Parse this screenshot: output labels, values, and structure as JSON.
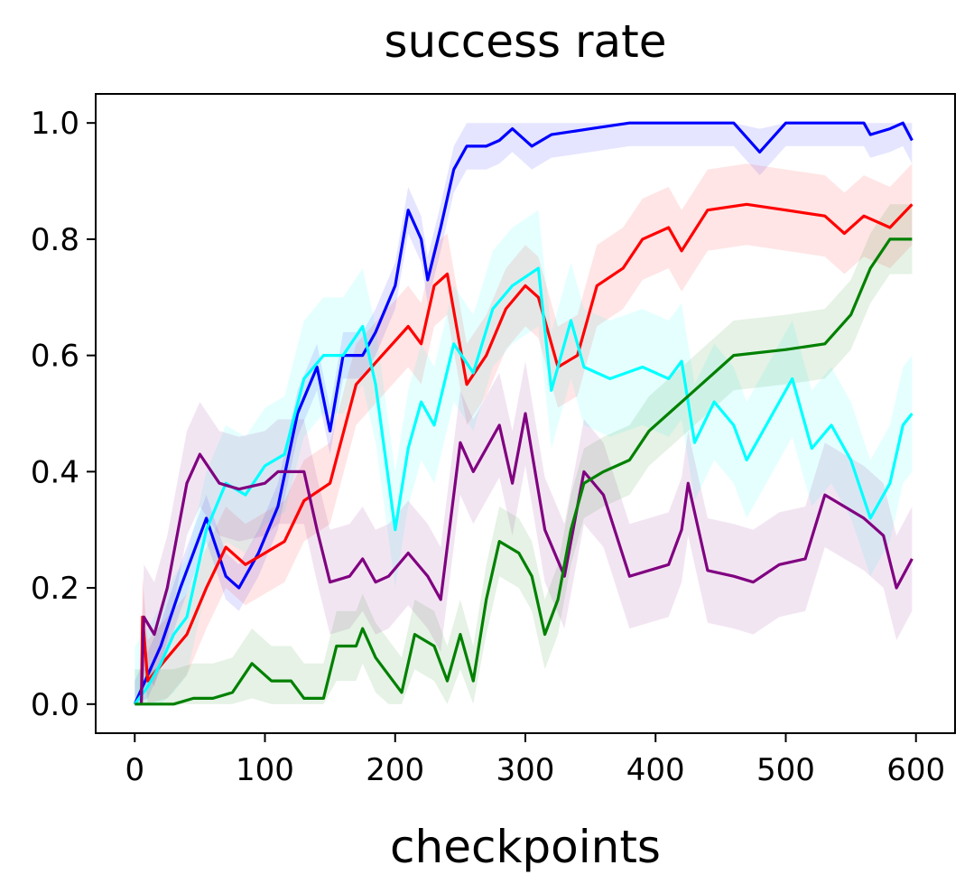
{
  "chart_data": {
    "type": "line",
    "title": "success rate",
    "xlabel": "checkpoints",
    "ylabel": "",
    "xlim": [
      -30,
      630
    ],
    "ylim": [
      -0.05,
      1.05
    ],
    "xticks": [
      0,
      100,
      200,
      300,
      400,
      500,
      600
    ],
    "yticks": [
      0.0,
      0.2,
      0.4,
      0.6,
      0.8,
      1.0
    ],
    "xtick_labels": [
      "0",
      "100",
      "200",
      "300",
      "400",
      "500",
      "600"
    ],
    "ytick_labels": [
      "0.0",
      "0.2",
      "0.4",
      "0.6",
      "0.8",
      "1.0"
    ],
    "grid": false,
    "legend": "none",
    "series": [
      {
        "color": "#0000ff",
        "band": 0.04,
        "points": [
          [
            0,
            0
          ],
          [
            10,
            0.05
          ],
          [
            20,
            0.1
          ],
          [
            35,
            0.2
          ],
          [
            55,
            0.32
          ],
          [
            70,
            0.22
          ],
          [
            80,
            0.2
          ],
          [
            95,
            0.26
          ],
          [
            110,
            0.34
          ],
          [
            125,
            0.5
          ],
          [
            140,
            0.58
          ],
          [
            150,
            0.47
          ],
          [
            160,
            0.6
          ],
          [
            175,
            0.6
          ],
          [
            185,
            0.64
          ],
          [
            200,
            0.72
          ],
          [
            210,
            0.85
          ],
          [
            220,
            0.8
          ],
          [
            225,
            0.73
          ],
          [
            235,
            0.82
          ],
          [
            245,
            0.92
          ],
          [
            255,
            0.96
          ],
          [
            270,
            0.96
          ],
          [
            280,
            0.97
          ],
          [
            290,
            0.99
          ],
          [
            305,
            0.96
          ],
          [
            320,
            0.98
          ],
          [
            350,
            0.99
          ],
          [
            380,
            1.0
          ],
          [
            420,
            1.0
          ],
          [
            460,
            1.0
          ],
          [
            480,
            0.95
          ],
          [
            500,
            1.0
          ],
          [
            560,
            1.0
          ],
          [
            565,
            0.98
          ],
          [
            580,
            0.99
          ],
          [
            590,
            1.0
          ],
          [
            597,
            0.97
          ]
        ]
      },
      {
        "color": "#ff0000",
        "band": 0.07,
        "points": [
          [
            5,
            0
          ],
          [
            6,
            0.15
          ],
          [
            10,
            0.04
          ],
          [
            25,
            0.08
          ],
          [
            40,
            0.12
          ],
          [
            55,
            0.2
          ],
          [
            70,
            0.27
          ],
          [
            85,
            0.24
          ],
          [
            100,
            0.26
          ],
          [
            115,
            0.28
          ],
          [
            130,
            0.35
          ],
          [
            150,
            0.38
          ],
          [
            170,
            0.55
          ],
          [
            190,
            0.6
          ],
          [
            210,
            0.65
          ],
          [
            220,
            0.62
          ],
          [
            230,
            0.72
          ],
          [
            240,
            0.74
          ],
          [
            255,
            0.55
          ],
          [
            270,
            0.6
          ],
          [
            285,
            0.68
          ],
          [
            300,
            0.72
          ],
          [
            310,
            0.7
          ],
          [
            325,
            0.58
          ],
          [
            340,
            0.6
          ],
          [
            355,
            0.72
          ],
          [
            375,
            0.75
          ],
          [
            390,
            0.8
          ],
          [
            410,
            0.82
          ],
          [
            420,
            0.78
          ],
          [
            440,
            0.85
          ],
          [
            470,
            0.86
          ],
          [
            500,
            0.85
          ],
          [
            530,
            0.84
          ],
          [
            545,
            0.81
          ],
          [
            560,
            0.84
          ],
          [
            580,
            0.82
          ],
          [
            597,
            0.86
          ]
        ]
      },
      {
        "color": "#00ffff",
        "band": 0.1,
        "points": [
          [
            0,
            0
          ],
          [
            10,
            0.03
          ],
          [
            20,
            0.07
          ],
          [
            30,
            0.12
          ],
          [
            40,
            0.15
          ],
          [
            55,
            0.3
          ],
          [
            70,
            0.38
          ],
          [
            85,
            0.36
          ],
          [
            100,
            0.41
          ],
          [
            115,
            0.43
          ],
          [
            130,
            0.56
          ],
          [
            145,
            0.6
          ],
          [
            160,
            0.6
          ],
          [
            175,
            0.65
          ],
          [
            185,
            0.55
          ],
          [
            200,
            0.3
          ],
          [
            210,
            0.44
          ],
          [
            220,
            0.52
          ],
          [
            230,
            0.48
          ],
          [
            245,
            0.62
          ],
          [
            260,
            0.57
          ],
          [
            275,
            0.68
          ],
          [
            290,
            0.72
          ],
          [
            310,
            0.75
          ],
          [
            320,
            0.54
          ],
          [
            335,
            0.66
          ],
          [
            345,
            0.58
          ],
          [
            365,
            0.56
          ],
          [
            390,
            0.58
          ],
          [
            410,
            0.56
          ],
          [
            420,
            0.59
          ],
          [
            430,
            0.45
          ],
          [
            445,
            0.52
          ],
          [
            460,
            0.48
          ],
          [
            470,
            0.42
          ],
          [
            490,
            0.5
          ],
          [
            505,
            0.56
          ],
          [
            520,
            0.44
          ],
          [
            535,
            0.48
          ],
          [
            550,
            0.42
          ],
          [
            565,
            0.32
          ],
          [
            580,
            0.38
          ],
          [
            590,
            0.48
          ],
          [
            597,
            0.5
          ]
        ]
      },
      {
        "color": "#800080",
        "band": 0.09,
        "points": [
          [
            5,
            0
          ],
          [
            7,
            0.15
          ],
          [
            15,
            0.12
          ],
          [
            25,
            0.2
          ],
          [
            40,
            0.38
          ],
          [
            50,
            0.43
          ],
          [
            65,
            0.38
          ],
          [
            80,
            0.37
          ],
          [
            100,
            0.38
          ],
          [
            110,
            0.4
          ],
          [
            130,
            0.4
          ],
          [
            140,
            0.3
          ],
          [
            150,
            0.21
          ],
          [
            165,
            0.22
          ],
          [
            175,
            0.25
          ],
          [
            185,
            0.21
          ],
          [
            195,
            0.22
          ],
          [
            210,
            0.26
          ],
          [
            225,
            0.22
          ],
          [
            235,
            0.18
          ],
          [
            250,
            0.45
          ],
          [
            260,
            0.4
          ],
          [
            280,
            0.48
          ],
          [
            290,
            0.38
          ],
          [
            300,
            0.5
          ],
          [
            315,
            0.3
          ],
          [
            330,
            0.22
          ],
          [
            345,
            0.4
          ],
          [
            360,
            0.36
          ],
          [
            380,
            0.22
          ],
          [
            410,
            0.24
          ],
          [
            420,
            0.3
          ],
          [
            425,
            0.38
          ],
          [
            440,
            0.23
          ],
          [
            460,
            0.22
          ],
          [
            475,
            0.21
          ],
          [
            495,
            0.24
          ],
          [
            515,
            0.25
          ],
          [
            530,
            0.36
          ],
          [
            545,
            0.34
          ],
          [
            560,
            0.32
          ],
          [
            575,
            0.29
          ],
          [
            585,
            0.2
          ],
          [
            597,
            0.25
          ]
        ]
      },
      {
        "color": "#008000",
        "band": 0.06,
        "points": [
          [
            0,
            0
          ],
          [
            30,
            0
          ],
          [
            45,
            0.01
          ],
          [
            60,
            0.01
          ],
          [
            75,
            0.02
          ],
          [
            90,
            0.07
          ],
          [
            105,
            0.04
          ],
          [
            120,
            0.04
          ],
          [
            130,
            0.01
          ],
          [
            145,
            0.01
          ],
          [
            155,
            0.1
          ],
          [
            170,
            0.1
          ],
          [
            175,
            0.13
          ],
          [
            185,
            0.08
          ],
          [
            195,
            0.05
          ],
          [
            205,
            0.02
          ],
          [
            215,
            0.12
          ],
          [
            230,
            0.1
          ],
          [
            240,
            0.04
          ],
          [
            250,
            0.12
          ],
          [
            260,
            0.04
          ],
          [
            270,
            0.18
          ],
          [
            280,
            0.28
          ],
          [
            295,
            0.26
          ],
          [
            305,
            0.22
          ],
          [
            315,
            0.12
          ],
          [
            325,
            0.18
          ],
          [
            335,
            0.3
          ],
          [
            345,
            0.38
          ],
          [
            360,
            0.4
          ],
          [
            380,
            0.42
          ],
          [
            395,
            0.47
          ],
          [
            410,
            0.5
          ],
          [
            430,
            0.54
          ],
          [
            450,
            0.58
          ],
          [
            460,
            0.6
          ],
          [
            500,
            0.61
          ],
          [
            530,
            0.62
          ],
          [
            550,
            0.67
          ],
          [
            565,
            0.75
          ],
          [
            580,
            0.8
          ],
          [
            597,
            0.8
          ]
        ]
      }
    ]
  }
}
